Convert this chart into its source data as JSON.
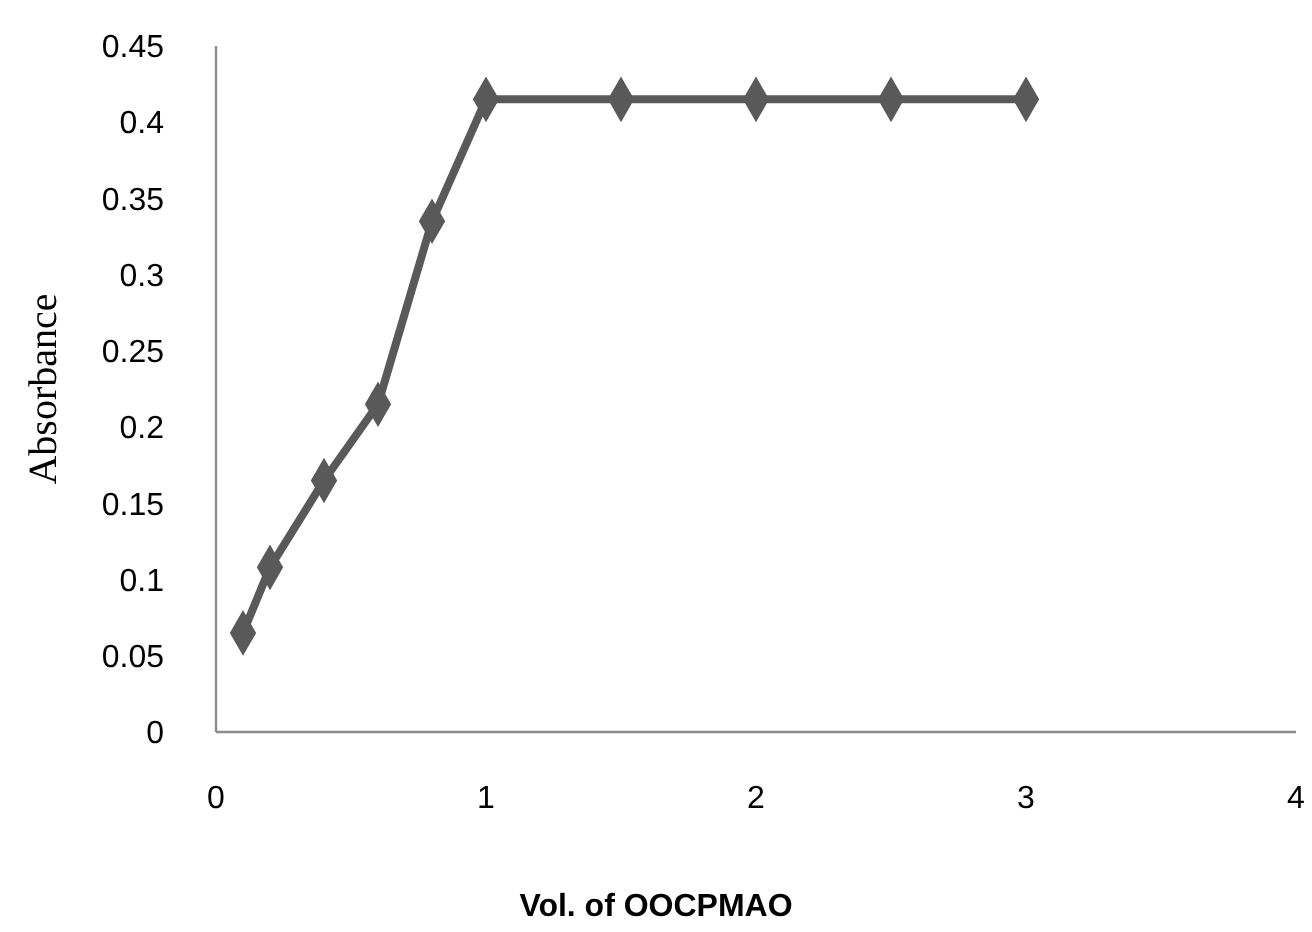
{
  "chart_data": {
    "type": "line",
    "xlabel": "Vol. of OOCPMAO",
    "ylabel": "Absorbance",
    "x": [
      0.1,
      0.2,
      0.4,
      0.6,
      0.8,
      1,
      1.5,
      2,
      2.5,
      3
    ],
    "series": [
      {
        "color": "#595959",
        "values": [
          0.065,
          0.108,
          0.165,
          0.215,
          0.335,
          0.415,
          0.415,
          0.415,
          0.415,
          0.415
        ]
      }
    ],
    "xlim": [
      0,
      4
    ],
    "xticks": [
      0,
      1,
      2,
      3,
      4
    ],
    "ylim": [
      0,
      0.45
    ],
    "yticks": [
      0,
      0.05,
      0.1,
      0.15,
      0.2,
      0.25,
      0.3,
      0.35,
      0.4,
      0.45
    ],
    "grid": false,
    "marker": "diamond",
    "line_style": "solid"
  }
}
